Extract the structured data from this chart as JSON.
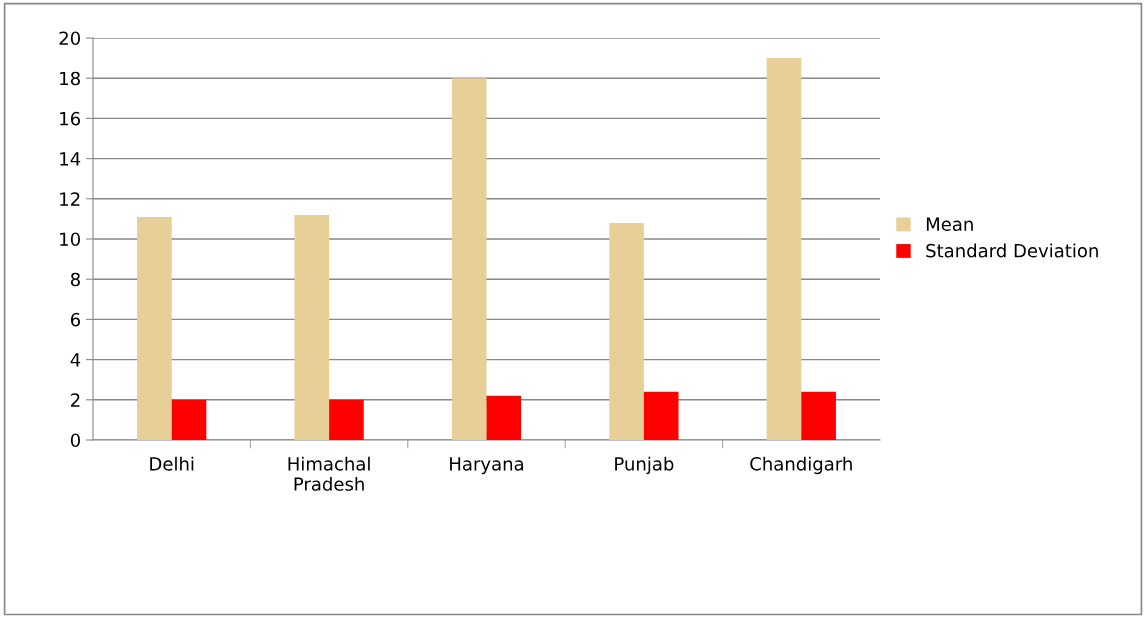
{
  "chart_data": {
    "type": "bar",
    "categories": [
      "Delhi",
      "Himachal\nPradesh",
      "Haryana",
      "Punjab",
      "Chandigarh"
    ],
    "series": [
      {
        "name": "Mean",
        "color": "#e8cf98",
        "values": [
          11.1,
          11.2,
          18.0,
          10.8,
          19.0
        ]
      },
      {
        "name": "Standard Deviation",
        "color": "#ff0000",
        "values": [
          2.0,
          2.0,
          2.2,
          2.4,
          2.4
        ]
      }
    ],
    "ylim": [
      0,
      20
    ],
    "yticks": [
      0,
      2,
      4,
      6,
      8,
      10,
      12,
      14,
      16,
      18,
      20
    ],
    "grid": "y",
    "legend": "right"
  }
}
